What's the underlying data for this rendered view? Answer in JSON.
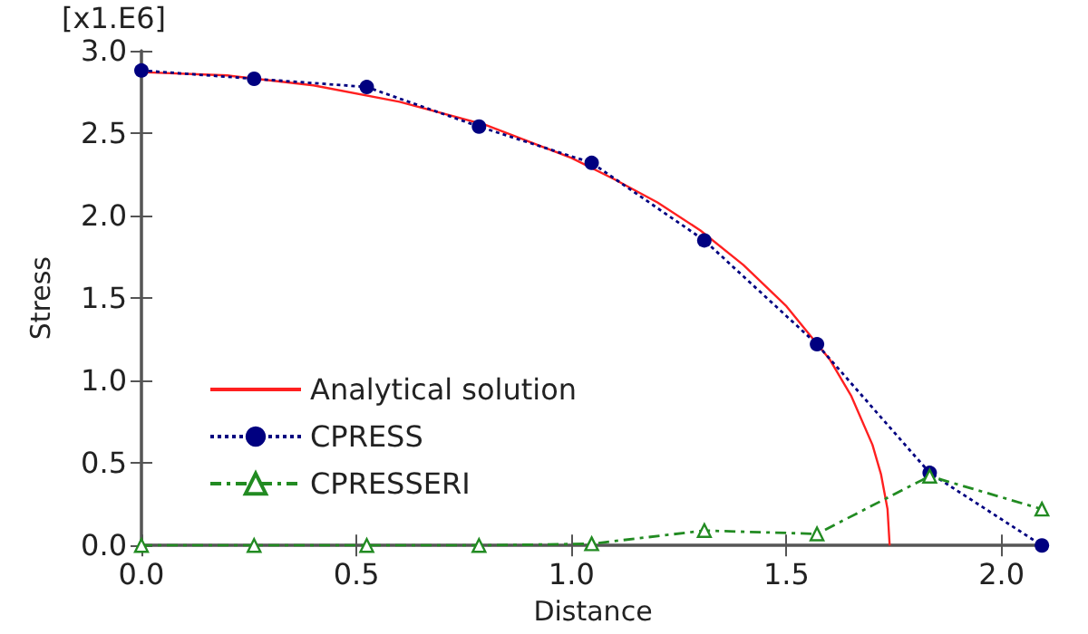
{
  "chart_data": {
    "type": "line",
    "xlabel": "Distance",
    "ylabel": "Stress",
    "annotations": [
      "[x1.E6]"
    ],
    "xlim": [
      0,
      2.1
    ],
    "ylim": [
      0,
      3.0
    ],
    "xticks": [
      {
        "value": 0,
        "label": "0.0"
      },
      {
        "value": 0.5,
        "label": "0.5"
      },
      {
        "value": 1,
        "label": "1.0"
      },
      {
        "value": 1.5,
        "label": "1.5"
      },
      {
        "value": 2,
        "label": "2.0"
      }
    ],
    "yticks": [
      {
        "value": 0,
        "label": "0.0"
      },
      {
        "value": 0.5,
        "label": "0.5"
      },
      {
        "value": 1,
        "label": "1.0"
      },
      {
        "value": 1.5,
        "label": "1.5"
      },
      {
        "value": 2,
        "label": "2.0"
      },
      {
        "value": 2.5,
        "label": "2.5"
      },
      {
        "value": 3,
        "label": "3.0"
      }
    ],
    "grid": false,
    "legend": "bottom left",
    "series": [
      {
        "name": "Analytical solution",
        "color": "#ff2020",
        "marker": "none",
        "line_style": "solid",
        "x": [
          0,
          0.2,
          0.4,
          0.6,
          0.8,
          1.0,
          1.1,
          1.2,
          1.3,
          1.4,
          1.5,
          1.6,
          1.65,
          1.7,
          1.72,
          1.735,
          1.74
        ],
        "values": [
          2.87,
          2.85,
          2.79,
          2.69,
          2.55,
          2.35,
          2.22,
          2.08,
          1.91,
          1.7,
          1.45,
          1.13,
          0.91,
          0.61,
          0.43,
          0.22,
          0
        ]
      },
      {
        "name": "CPRESS",
        "color": "#000080",
        "marker": "circle",
        "line_style": "dotted",
        "x": [
          0,
          0.262,
          0.524,
          0.785,
          1.047,
          1.309,
          1.571,
          1.833,
          2.094
        ],
        "values": [
          2.88,
          2.83,
          2.78,
          2.54,
          2.32,
          1.85,
          1.22,
          0.44,
          0
        ]
      },
      {
        "name": "CPRESSERI",
        "color": "#228b22",
        "marker": "triangle",
        "line_style": "dashed",
        "x": [
          0,
          0.262,
          0.524,
          0.785,
          1.047,
          1.309,
          1.571,
          1.833,
          2.094
        ],
        "values": [
          0,
          0,
          0,
          0,
          0.01,
          0.09,
          0.07,
          0.42,
          0.22
        ]
      }
    ]
  }
}
